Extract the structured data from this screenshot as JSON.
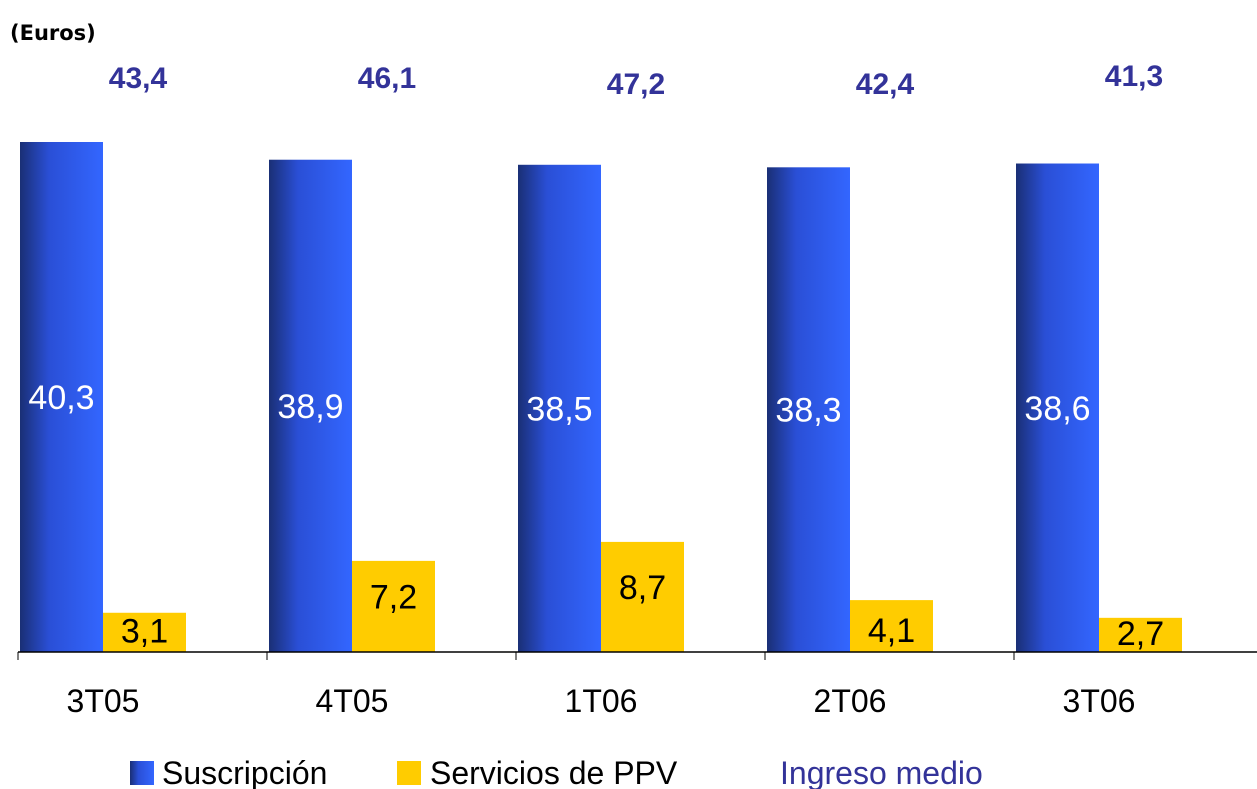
{
  "unit_label": "(Euros)",
  "colors": {
    "subscription": "#3366ff",
    "subscription_dark": "#1a2f75",
    "ppv": "#ffcc00",
    "average": "#333399",
    "axis": "#000000"
  },
  "chart_data": {
    "type": "bar",
    "categories": [
      "3T05",
      "4T05",
      "1T06",
      "2T06",
      "3T06"
    ],
    "series": [
      {
        "name": "Suscripción",
        "values": [
          40.3,
          38.9,
          38.5,
          38.3,
          38.6
        ],
        "labels": [
          "40,3",
          "38,9",
          "38,5",
          "38,3",
          "38,6"
        ]
      },
      {
        "name": "Servicios de PPV",
        "values": [
          3.1,
          7.2,
          8.7,
          4.1,
          2.7
        ],
        "labels": [
          "3,1",
          "7,2",
          "8,7",
          "4,1",
          "2,7"
        ]
      }
    ],
    "average": {
      "name": "Ingreso medio",
      "values": [
        43.4,
        46.1,
        47.2,
        42.4,
        41.3
      ],
      "labels": [
        "43,4",
        "46,1",
        "47,2",
        "42,4",
        "41,3"
      ]
    },
    "ylim": [
      0,
      40.3
    ],
    "grid": false,
    "legend": "bottom"
  }
}
